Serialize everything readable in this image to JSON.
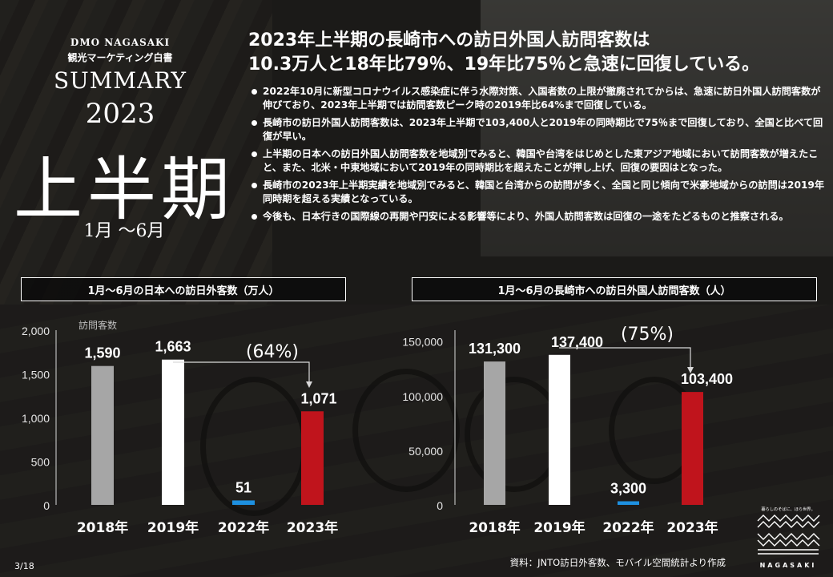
{
  "brand": {
    "line1": "DMO NAGASAKI",
    "line2": "観光マーケティング白書"
  },
  "cover": {
    "summary": "SUMMARY",
    "year": "2023",
    "half": "上半期",
    "period": "1月 ～6月"
  },
  "headline": {
    "line1": "2023年上半期の長崎市への訪日外国人訪問客数は",
    "line2": "10.3万人と18年比79％、19年比75％と急速に回復している。"
  },
  "bullets": [
    "2022年10月に新型コロナウイルス感染症に伴う水際対策、入国者数の上限が撤廃されてからは、急速に訪日外国人訪問客数が伸びており、2023年上半期では訪問客数ピーク時の2019年比64%まで回復している。",
    "長崎市の訪日外国人訪問客数は、2023年上半期で103,400人と2019年の同時期比で75％まで回復しており、全国と比べて回復が早い。",
    "上半期の日本への訪日外国人訪問客数を地域別でみると、韓国や台湾をはじめとした東アジア地域において訪問客数が増えたこと、また、北米・中東地域において2019年の同時期比を超えたことが押し上げ、回復の要因はとなった。",
    "長崎市の2023年上半期実績を地域別でみると、韓国と台湾からの訪問が多く、全国と同じ傾向で米豪地域からの訪問は2019年同時期を超える実績となっている。",
    "今後も、日本行きの国際線の再開や円安による影響等により、外国人訪問客数は回復の一途をたどるものと推察される。"
  ],
  "chart_data": [
    {
      "type": "bar",
      "title": "1月～6月の日本への訪日外客数（万人）",
      "ylabel": "訪問客数",
      "categories": [
        "2018年",
        "2019年",
        "2022年",
        "2023年"
      ],
      "values": [
        1590,
        1663,
        51,
        1071
      ],
      "value_labels": [
        "1,590",
        "1,663",
        "51",
        "1,071"
      ],
      "yticks": [
        "0",
        "500",
        "1,000",
        "1,500",
        "2,000"
      ],
      "ytick_values": [
        0,
        500,
        1000,
        1500,
        2000
      ],
      "ylim": [
        0,
        2000
      ],
      "colors": [
        "#a6a6a6",
        "#ffffff",
        "#1e90e0",
        "#c0141c"
      ],
      "annotation": "(64%)"
    },
    {
      "type": "bar",
      "title": "1月～6月の長崎市への訪日外国人訪問客数（人）",
      "categories": [
        "2018年",
        "2019年",
        "2022年",
        "2023年"
      ],
      "values": [
        131300,
        137400,
        3300,
        103400
      ],
      "value_labels": [
        "131,300",
        "137,400",
        "3,300",
        "103,400"
      ],
      "yticks": [
        "0",
        "50,000",
        "100,000",
        "150,000"
      ],
      "ytick_values": [
        0,
        50000,
        100000,
        150000
      ],
      "ylim": [
        0,
        160000
      ],
      "colors": [
        "#a6a6a6",
        "#ffffff",
        "#1e90e0",
        "#c0141c"
      ],
      "annotation": "(75%)"
    }
  ],
  "source": "資料：JNTO訪日外客数、モバイル空間統計より作成",
  "page": "3/18",
  "logo": {
    "tagline": "暮らしのそばに、ほら世界。",
    "word": "NAGASAKI"
  }
}
